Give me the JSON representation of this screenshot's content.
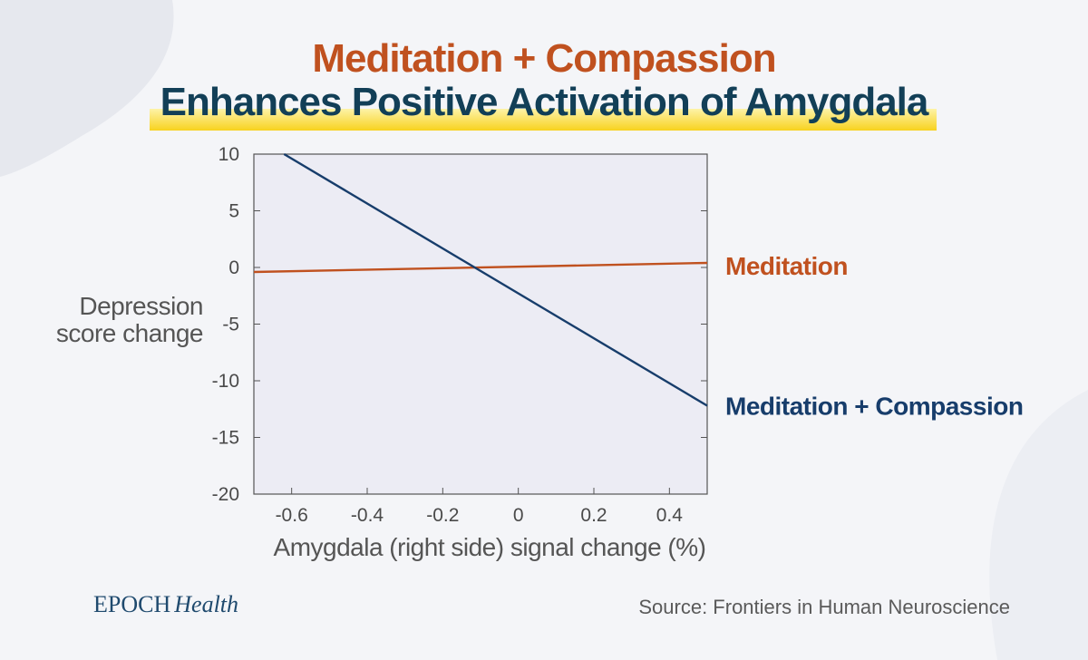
{
  "title_line1": "Meditation + Compassion",
  "title_line2": "Enhances Positive Activation of Amygdala",
  "brand": {
    "part1": "EPOCH",
    "part2": "Health"
  },
  "source": "Source: Frontiers in Human Neuroscience",
  "colors": {
    "title1": "#c0511f",
    "title2": "#123f57",
    "meditation": "#c0511f",
    "meditation_compassion": "#173d6b",
    "plot_bg": "#ececf4"
  },
  "chart_data": {
    "type": "line",
    "xlabel": "Amygdala (right side) signal change (%)",
    "ylabel": [
      "Depression",
      "score change"
    ],
    "xlim": [
      -0.7,
      0.5
    ],
    "ylim": [
      -20,
      10
    ],
    "xticks": [
      -0.6,
      -0.4,
      -0.2,
      0,
      0.2,
      0.4
    ],
    "xtick_labels": [
      "-0.6",
      "-0.4",
      "-0.2",
      "0",
      "0.2",
      "0.4"
    ],
    "yticks": [
      10,
      5,
      0,
      -5,
      -10,
      -15,
      -20
    ],
    "ytick_labels": [
      "10",
      "5",
      "0",
      "-5",
      "-10",
      "-15",
      "-20"
    ],
    "grid": false,
    "series": [
      {
        "name": "Meditation",
        "x": [
          -0.7,
          0.5
        ],
        "y": [
          -0.4,
          0.4
        ]
      },
      {
        "name": "Meditation + Compassion",
        "x": [
          -0.62,
          0.5
        ],
        "y": [
          10,
          -12.2
        ]
      }
    ]
  }
}
